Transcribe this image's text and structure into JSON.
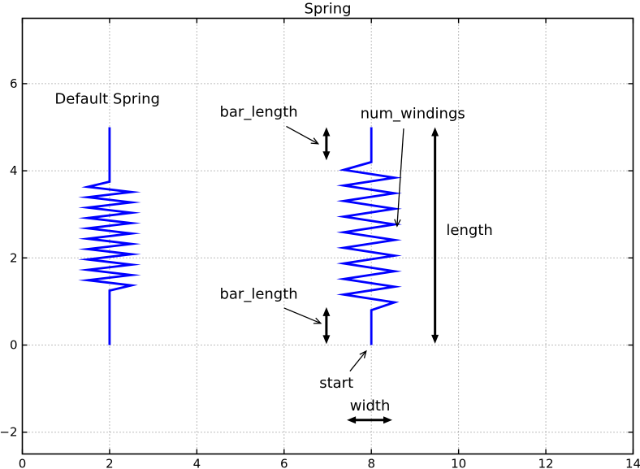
{
  "title": "Spring",
  "colors": {
    "spring": "#0000ff",
    "annotation": "#000000",
    "grid": "#7a7a7a",
    "axes": "#000000",
    "background": "#ffffff"
  },
  "axes": {
    "xlim": [
      0,
      14
    ],
    "ylim": [
      -2.5,
      7.5
    ],
    "xticks": [
      0,
      2,
      4,
      6,
      8,
      10,
      12,
      14
    ],
    "xtick_labels": [
      "0",
      "2",
      "4",
      "6",
      "8",
      "10",
      "12",
      "14"
    ],
    "yticks": [
      -2,
      0,
      2,
      4,
      6
    ],
    "ytick_labels": [
      "−2",
      "0",
      "2",
      "4",
      "6"
    ],
    "grid": "dotted"
  },
  "chart_data": {
    "type": "line",
    "title": "Spring",
    "description": "Two blue springs drawn as zigzag polylines; the left one is the default spring, the right one is annotated with its geometric parameters (start, length, width, bar_length, num_windings).",
    "springs": [
      {
        "name": "default-spring",
        "x": 2,
        "start_y": 0,
        "length": 5,
        "bar_length": 1.25,
        "width": 1.0,
        "num_windings": 10,
        "winding_center_offset": 0
      },
      {
        "name": "annotated-spring",
        "x": 8,
        "start_y": 0,
        "length": 5,
        "bar_length": 0.8,
        "width": 1.16,
        "num_windings": 9,
        "winding_center_offset": -0.05
      }
    ],
    "labels": [
      {
        "name": "default-spring-label",
        "text": "Default Spring",
        "x": 1.95,
        "y": 5.65
      },
      {
        "name": "bar-length-top-label",
        "text": "bar_length",
        "x": 5.42,
        "y": 5.35
      },
      {
        "name": "num-windings-label",
        "text": "num_windings",
        "x": 8.95,
        "y": 5.32
      },
      {
        "name": "bar-length-bottom-label",
        "text": "bar_length",
        "x": 5.42,
        "y": 1.18
      },
      {
        "name": "length-label",
        "text": "length",
        "x": 10.25,
        "y": 2.64
      },
      {
        "name": "start-label",
        "text": "start",
        "x": 7.2,
        "y": -0.87
      },
      {
        "name": "width-label",
        "text": "width",
        "x": 7.97,
        "y": -1.39
      }
    ],
    "pointer_arrows": [
      {
        "name": "bar-length-top-arrow",
        "from": [
          6.05,
          5.02
        ],
        "to": [
          6.78,
          4.62
        ]
      },
      {
        "name": "bar-length-bottom-arrow",
        "from": [
          6.0,
          0.85
        ],
        "to": [
          6.84,
          0.5
        ]
      },
      {
        "name": "num-windings-arrow",
        "from": [
          8.74,
          4.97
        ],
        "to": [
          8.59,
          2.73
        ]
      },
      {
        "name": "start-arrow",
        "from": [
          7.51,
          -0.6
        ],
        "to": [
          7.88,
          -0.14
        ]
      }
    ],
    "dimension_arrows": [
      {
        "name": "bar-length-top-dim",
        "from": [
          6.97,
          5.0
        ],
        "to": [
          6.97,
          4.24
        ]
      },
      {
        "name": "bar-length-bottom-dim",
        "from": [
          6.97,
          0.87
        ],
        "to": [
          6.97,
          0.02
        ]
      },
      {
        "name": "length-dim",
        "from": [
          9.46,
          5.0
        ],
        "to": [
          9.46,
          0.03
        ]
      },
      {
        "name": "width-dim",
        "from": [
          7.44,
          -1.72
        ],
        "to": [
          8.48,
          -1.72
        ]
      }
    ]
  }
}
